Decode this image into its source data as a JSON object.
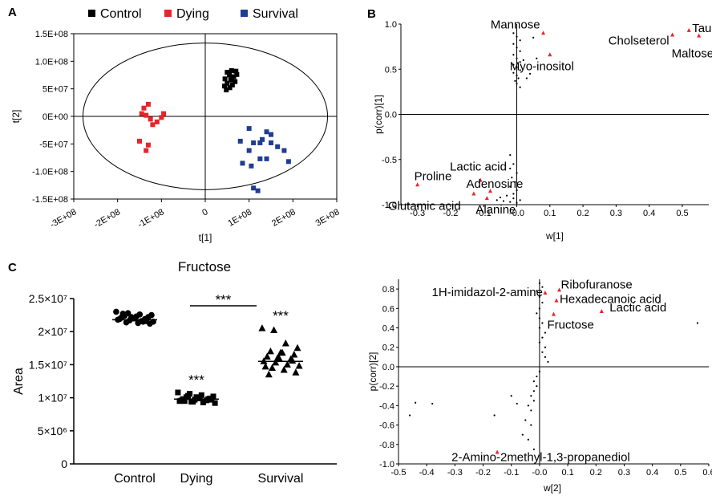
{
  "panels": {
    "a": "A",
    "b": "B",
    "c": "C"
  },
  "chart_data": [
    {
      "id": "A",
      "type": "scatter",
      "xlabel": "t[1]",
      "ylabel": "t[2]",
      "xlim": [
        -300000000,
        300000000
      ],
      "ylim": [
        -150000000,
        150000000
      ],
      "xticks": [
        {
          "v": -300000000,
          "label": "-3E+08"
        },
        {
          "v": -200000000,
          "label": "-2E+08"
        },
        {
          "v": -100000000,
          "label": "-1E+08"
        },
        {
          "v": 0,
          "label": "0"
        },
        {
          "v": 100000000,
          "label": "1E+08"
        },
        {
          "v": 200000000,
          "label": "2E+08"
        },
        {
          "v": 300000000,
          "label": "3E+08"
        }
      ],
      "yticks": [
        {
          "v": 150000000,
          "label": "1.5E+08"
        },
        {
          "v": 100000000,
          "label": "1.0E+08"
        },
        {
          "v": 50000000,
          "label": "5E+07"
        },
        {
          "v": 0,
          "label": "0E+00"
        },
        {
          "v": -50000000,
          "label": "-5E+07"
        },
        {
          "v": -100000000,
          "label": "-1.0E+08"
        },
        {
          "v": -150000000,
          "label": "-1.5E+08"
        }
      ],
      "ellipse": {
        "rx": 279000000,
        "ry": 133000000
      },
      "legend_position": "top",
      "series": [
        {
          "name": "Control",
          "color": "#000000",
          "marker": "square",
          "points": [
            [
              50000000,
              80000000
            ],
            [
              60000000,
              83000000
            ],
            [
              70000000,
              82000000
            ],
            [
              55000000,
              75000000
            ],
            [
              65000000,
              72000000
            ],
            [
              45000000,
              68000000
            ],
            [
              58000000,
              66000000
            ],
            [
              68000000,
              63000000
            ],
            [
              50000000,
              60000000
            ],
            [
              62000000,
              57000000
            ],
            [
              44000000,
              55000000
            ],
            [
              56000000,
              52000000
            ],
            [
              48000000,
              48000000
            ],
            [
              60000000,
              70000000
            ],
            [
              72000000,
              76000000
            ]
          ]
        },
        {
          "name": "Dying",
          "color": "#e8242a",
          "marker": "square",
          "points": [
            [
              -130000000,
              22000000
            ],
            [
              -140000000,
              15000000
            ],
            [
              -145000000,
              5000000
            ],
            [
              -135000000,
              2000000
            ],
            [
              -95000000,
              5000000
            ],
            [
              -100000000,
              -2000000
            ],
            [
              -110000000,
              -10000000
            ],
            [
              -120000000,
              -15000000
            ],
            [
              -150000000,
              -45000000
            ],
            [
              -130000000,
              -52000000
            ],
            [
              -135000000,
              -62000000
            ],
            [
              -125000000,
              -5000000
            ]
          ]
        },
        {
          "name": "Survival",
          "color": "#1f3d91",
          "marker": "square",
          "points": [
            [
              100000000,
              -22000000
            ],
            [
              140000000,
              -28000000
            ],
            [
              150000000,
              -33000000
            ],
            [
              80000000,
              -45000000
            ],
            [
              110000000,
              -48000000
            ],
            [
              125000000,
              -48000000
            ],
            [
              150000000,
              -48000000
            ],
            [
              165000000,
              -55000000
            ],
            [
              130000000,
              -42000000
            ],
            [
              100000000,
              -62000000
            ],
            [
              180000000,
              -62000000
            ],
            [
              125000000,
              -77000000
            ],
            [
              140000000,
              -77000000
            ],
            [
              190000000,
              -82000000
            ],
            [
              85000000,
              -85000000
            ],
            [
              105000000,
              -90000000
            ],
            [
              110000000,
              -130000000
            ],
            [
              120000000,
              -135000000
            ]
          ]
        }
      ]
    },
    {
      "id": "B",
      "type": "scatter",
      "xlabel": "w[1]",
      "ylabel": "p(corr)[1]",
      "xlim": [
        -0.35,
        0.58
      ],
      "ylim": [
        -1.0,
        1.0
      ],
      "xticks": [
        {
          "v": -0.3,
          "label": "-0.3"
        },
        {
          "v": -0.2,
          "label": "-0.2"
        },
        {
          "v": -0.1,
          "label": "-0.1"
        },
        {
          "v": 0,
          "label": "-0.0"
        },
        {
          "v": 0.1,
          "label": "0.1"
        },
        {
          "v": 0.2,
          "label": "0.2"
        },
        {
          "v": 0.3,
          "label": "0.3"
        },
        {
          "v": 0.4,
          "label": "0.4"
        },
        {
          "v": 0.5,
          "label": "0.5"
        }
      ],
      "yticks": [
        {
          "v": 1.0,
          "label": "1.0"
        },
        {
          "v": 0.5,
          "label": "0.5"
        },
        {
          "v": 0,
          "label": "0.0"
        },
        {
          "v": -0.5,
          "label": "-0.5"
        },
        {
          "v": -1.0,
          "label": "-1.0"
        }
      ],
      "highlight_color": "#e8242a",
      "labeled_points": [
        {
          "label": "Mannose",
          "x": 0.08,
          "y": 0.9
        },
        {
          "label": "Myo-inositol",
          "x": 0.1,
          "y": 0.66
        },
        {
          "label": "Cholseterol",
          "x": 0.47,
          "y": 0.88
        },
        {
          "label": "Taurine",
          "x": 0.52,
          "y": 0.93
        },
        {
          "label": "Maltose",
          "x": 0.55,
          "y": 0.87
        },
        {
          "label": "Lactic acid",
          "x": -0.11,
          "y": -0.73
        },
        {
          "label": "Adenosine",
          "x": -0.08,
          "y": -0.85
        },
        {
          "label": "Proline",
          "x": -0.3,
          "y": -0.78
        },
        {
          "label": "Glutamic acid",
          "x": -0.13,
          "y": -0.88
        },
        {
          "label": "Alanine",
          "x": -0.09,
          "y": -0.93
        }
      ],
      "other_points": [
        [
          -0.01,
          0.9
        ],
        [
          0.0,
          0.86
        ],
        [
          0.01,
          0.82
        ],
        [
          -0.01,
          0.78
        ],
        [
          0.0,
          0.74
        ],
        [
          0.01,
          0.7
        ],
        [
          -0.01,
          0.66
        ],
        [
          0.0,
          0.62
        ],
        [
          0.01,
          0.58
        ],
        [
          -0.01,
          0.55
        ],
        [
          0.0,
          0.52
        ],
        [
          0.01,
          0.49
        ],
        [
          -0.01,
          0.46
        ],
        [
          0.0,
          0.43
        ],
        [
          0.005,
          0.4
        ],
        [
          -0.005,
          0.37
        ],
        [
          0.0,
          0.34
        ],
        [
          0.01,
          0.3
        ],
        [
          0.03,
          0.4
        ],
        [
          0.04,
          0.45
        ],
        [
          0.02,
          0.6
        ],
        [
          0.05,
          0.85
        ],
        [
          0.06,
          0.62
        ],
        [
          -0.02,
          -0.45
        ],
        [
          -0.01,
          -0.55
        ],
        [
          -0.02,
          -0.6
        ],
        [
          0.0,
          -0.65
        ],
        [
          -0.015,
          -0.7
        ],
        [
          -0.005,
          -0.75
        ],
        [
          -0.02,
          -0.8
        ],
        [
          0.0,
          -0.84
        ],
        [
          -0.01,
          -0.88
        ],
        [
          -0.03,
          -0.9
        ],
        [
          -0.05,
          -0.92
        ],
        [
          -0.01,
          -0.93
        ],
        [
          0.01,
          -0.95
        ],
        [
          -0.04,
          -0.96
        ],
        [
          0.0,
          -0.98
        ],
        [
          -0.02,
          -0.97
        ],
        [
          -0.06,
          -0.95
        ]
      ]
    },
    {
      "id": "C",
      "type": "scatter",
      "title": "Fructose",
      "ylabel": "Area",
      "categories": [
        "Control",
        "Dying",
        "Survival"
      ],
      "ylim": [
        0,
        25000000
      ],
      "yticks": [
        {
          "v": 0,
          "label": "0"
        },
        {
          "v": 5000000,
          "label": "5×10⁶"
        },
        {
          "v": 10000000,
          "label": "1×10⁷"
        },
        {
          "v": 15000000,
          "label": "1.5×10⁷"
        },
        {
          "v": 20000000,
          "label": "2×10⁷"
        },
        {
          "v": 25000000,
          "label": "2.5×10⁷"
        }
      ],
      "significance": [
        {
          "label": "***",
          "category": "Dying"
        },
        {
          "label": "***",
          "category": "Survival"
        },
        {
          "label": "***",
          "from": "Dying",
          "to": "Survival",
          "bracket": true
        }
      ],
      "series": [
        {
          "category": "Control",
          "marker": "circle",
          "mean": 21800000,
          "values": [
            23000000,
            22800000,
            22600000,
            22500000,
            22400000,
            22300000,
            22200000,
            22100000,
            22000000,
            21900000,
            21800000,
            21700000,
            21600000,
            21500000,
            21400000,
            21300000,
            21200000,
            22700000,
            22000000,
            21600000,
            21900000,
            22200000,
            21500000
          ]
        },
        {
          "category": "Dying",
          "marker": "square",
          "mean": 9800000,
          "values": [
            10800000,
            10600000,
            10400000,
            10200000,
            10100000,
            10000000,
            9900000,
            9800000,
            9700000,
            9600000,
            9500000,
            9400000,
            9300000,
            9200000,
            10300000,
            9900000,
            9700000,
            9500000,
            10100000,
            9800000,
            9600000,
            9400000
          ]
        },
        {
          "category": "Survival",
          "marker": "triangle",
          "mean": 15500000,
          "values": [
            20500000,
            20200000,
            18200000,
            17500000,
            17000000,
            16800000,
            16500000,
            16200000,
            16000000,
            15800000,
            15500000,
            15300000,
            15000000,
            14800000,
            14500000,
            14200000,
            13800000,
            13500000,
            16800000,
            15600000,
            14700000,
            15900000
          ]
        }
      ]
    },
    {
      "id": "D",
      "type": "scatter",
      "xlabel": "w[2]",
      "ylabel": "p(corr)[2]",
      "xlim": [
        -0.5,
        0.6
      ],
      "ylim": [
        -1.0,
        0.9
      ],
      "xticks": [
        {
          "v": -0.5,
          "label": "-0.5"
        },
        {
          "v": -0.4,
          "label": "-0.4"
        },
        {
          "v": -0.3,
          "label": "-0.3"
        },
        {
          "v": -0.2,
          "label": "-0.2"
        },
        {
          "v": -0.1,
          "label": "-0.1"
        },
        {
          "v": 0,
          "label": "-0.0"
        },
        {
          "v": 0.1,
          "label": "0.1"
        },
        {
          "v": 0.2,
          "label": "0.2"
        },
        {
          "v": 0.3,
          "label": "0.3"
        },
        {
          "v": 0.4,
          "label": "0.4"
        },
        {
          "v": 0.5,
          "label": "0.5"
        },
        {
          "v": 0.6,
          "label": "0.6"
        }
      ],
      "yticks": [
        {
          "v": 0.8,
          "label": "0.8"
        },
        {
          "v": 0.6,
          "label": "0.6"
        },
        {
          "v": 0.4,
          "label": "0.4"
        },
        {
          "v": 0.2,
          "label": "0.2"
        },
        {
          "v": 0,
          "label": "0.0"
        },
        {
          "v": -0.2,
          "label": "-0.2"
        },
        {
          "v": -0.4,
          "label": "-0.4"
        },
        {
          "v": -0.6,
          "label": "-0.6"
        },
        {
          "v": -0.8,
          "label": "-0.8"
        },
        {
          "v": -1.0,
          "label": "-1.0"
        }
      ],
      "highlight_color": "#e8242a",
      "labeled_points": [
        {
          "label": "1H-imidazol-2-amine",
          "x": 0.02,
          "y": 0.76
        },
        {
          "label": "Ribofuranose",
          "x": 0.07,
          "y": 0.79
        },
        {
          "label": "Hexadecanoic acid",
          "x": 0.06,
          "y": 0.68
        },
        {
          "label": "Lactic acid",
          "x": 0.22,
          "y": 0.57
        },
        {
          "label": "Fructose",
          "x": 0.05,
          "y": 0.54
        },
        {
          "label": "2-Amino-2methyl-1,3-propanediol",
          "x": -0.15,
          "y": -0.88
        }
      ],
      "other_points": [
        [
          0.0,
          0.86
        ],
        [
          0.01,
          0.82
        ],
        [
          -0.01,
          0.78
        ],
        [
          0.0,
          0.72
        ],
        [
          0.01,
          0.66
        ],
        [
          0.0,
          0.6
        ],
        [
          -0.01,
          0.55
        ],
        [
          0.0,
          0.5
        ],
        [
          0.01,
          0.45
        ],
        [
          0.0,
          0.4
        ],
        [
          0.02,
          0.35
        ],
        [
          0.01,
          0.3
        ],
        [
          0.0,
          0.25
        ],
        [
          0.02,
          0.2
        ],
        [
          0.01,
          0.15
        ],
        [
          0.02,
          0.1
        ],
        [
          0.03,
          0.05
        ],
        [
          0.56,
          0.45
        ],
        [
          0.0,
          -0.05
        ],
        [
          -0.01,
          -0.1
        ],
        [
          -0.02,
          -0.15
        ],
        [
          -0.01,
          -0.2
        ],
        [
          -0.02,
          -0.25
        ],
        [
          -0.03,
          -0.3
        ],
        [
          -0.02,
          -0.35
        ],
        [
          -0.04,
          -0.4
        ],
        [
          -0.03,
          -0.45
        ],
        [
          -0.05,
          -0.55
        ],
        [
          -0.03,
          -0.6
        ],
        [
          -0.06,
          -0.7
        ],
        [
          -0.04,
          -0.75
        ],
        [
          -0.02,
          -0.85
        ],
        [
          -0.1,
          -0.3
        ],
        [
          -0.16,
          -0.5
        ],
        [
          -0.44,
          -0.37
        ],
        [
          -0.46,
          -0.5
        ],
        [
          -0.38,
          -0.38
        ],
        [
          -0.08,
          -0.38
        ]
      ]
    }
  ]
}
